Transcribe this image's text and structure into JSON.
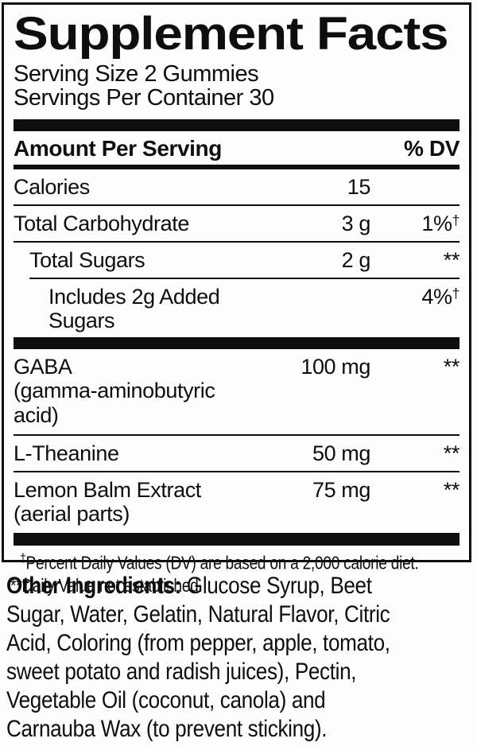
{
  "panel": {
    "title": "Supplement Facts",
    "serving_size_line": "Serving Size 2 Gummies",
    "servings_per_container_line": "Servings Per Container 30",
    "header": {
      "amount_label": "Amount Per Serving",
      "dv_label": "% DV"
    },
    "rows": [
      {
        "name": "Calories",
        "amount": "15",
        "dv": "",
        "dv_sup": ""
      },
      {
        "name": "Total Carbohydrate",
        "amount": "3 g",
        "dv": "1%",
        "dv_sup": "†"
      },
      {
        "name": "Total Sugars",
        "amount": "2 g",
        "dv": "**",
        "dv_sup": ""
      },
      {
        "name": "Includes 2g Added Sugars",
        "amount": "",
        "dv": "4%",
        "dv_sup": "†"
      },
      {
        "name": "GABA",
        "sub": "(gamma-aminobutyric acid)",
        "amount": "100 mg",
        "dv": "**",
        "dv_sup": ""
      },
      {
        "name": "L-Theanine",
        "amount": "50 mg",
        "dv": "**",
        "dv_sup": ""
      },
      {
        "name": "Lemon Balm Extract",
        "sub": "(aerial parts)",
        "amount": "75 mg",
        "dv": "**",
        "dv_sup": ""
      }
    ],
    "footnotes": {
      "daily_value_sup": "†",
      "daily_value_text": "Percent Daily Values (DV) are based on a 2,000 calorie diet.",
      "not_established_text": "**Daily Value not established."
    }
  },
  "other_ingredients": {
    "label": "Other Ingredients:",
    "line1_rest": " Glucose Syrup, Beet",
    "lines": [
      "Sugar, Water, Gelatin, Natural Flavor, Citric",
      "Acid, Coloring (from pepper, apple, tomato,",
      "sweet potato and radish juices), Pectin,",
      "Vegetable Oil (coconut, canola) and",
      "Carnauba Wax (to prevent sticking)."
    ]
  },
  "colors": {
    "text": "#0e0e0e",
    "background": "#fdfdfd",
    "border": "#0e0e0e"
  }
}
